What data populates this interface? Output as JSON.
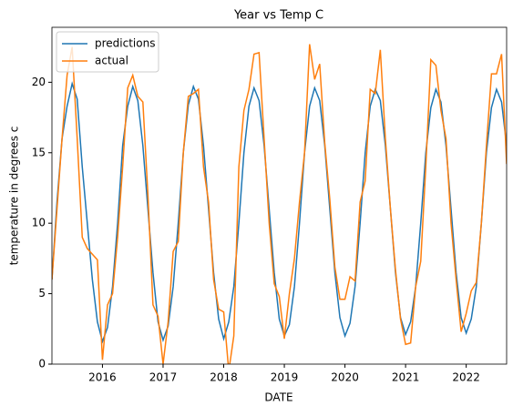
{
  "chart_data": {
    "type": "line",
    "title": "Year vs Temp C",
    "xlabel": "DATE",
    "ylabel": "temperature in degrees c",
    "x": [
      "2015-03",
      "2015-04",
      "2015-05",
      "2015-06",
      "2015-07",
      "2015-08",
      "2015-09",
      "2015-10",
      "2015-11",
      "2015-12",
      "2016-01",
      "2016-02",
      "2016-03",
      "2016-04",
      "2016-05",
      "2016-06",
      "2016-07",
      "2016-08",
      "2016-09",
      "2016-10",
      "2016-11",
      "2016-12",
      "2017-01",
      "2017-02",
      "2017-03",
      "2017-04",
      "2017-05",
      "2017-06",
      "2017-07",
      "2017-08",
      "2017-09",
      "2017-10",
      "2017-11",
      "2017-12",
      "2018-01",
      "2018-02",
      "2018-03",
      "2018-04",
      "2018-05",
      "2018-06",
      "2018-07",
      "2018-08",
      "2018-09",
      "2018-10",
      "2018-11",
      "2018-12",
      "2019-01",
      "2019-02",
      "2019-03",
      "2019-04",
      "2019-05",
      "2019-06",
      "2019-07",
      "2019-08",
      "2019-09",
      "2019-10",
      "2019-11",
      "2019-12",
      "2020-01",
      "2020-02",
      "2020-03",
      "2020-04",
      "2020-05",
      "2020-06",
      "2020-07",
      "2020-08",
      "2020-09",
      "2020-10",
      "2020-11",
      "2020-12",
      "2021-01",
      "2021-02",
      "2021-03",
      "2021-04",
      "2021-05",
      "2021-06",
      "2021-07",
      "2021-08",
      "2021-09",
      "2021-10",
      "2021-11",
      "2021-12",
      "2022-01",
      "2022-02",
      "2022-03",
      "2022-04",
      "2022-05",
      "2022-06",
      "2022-07",
      "2022-08",
      "2022-09"
    ],
    "series": [
      {
        "name": "predictions",
        "color": "#1f77b4",
        "values": [
          6,
          11.5,
          16,
          18.3,
          19.9,
          18.8,
          14,
          10,
          6,
          3,
          1.6,
          2.6,
          5.5,
          10,
          15.5,
          18.3,
          19.7,
          18.7,
          15.5,
          11,
          6.5,
          3,
          1.7,
          2.7,
          5.5,
          10,
          15,
          18.4,
          19.7,
          18.8,
          15.5,
          11,
          6.5,
          3.2,
          1.8,
          3,
          5.5,
          10,
          15,
          18.3,
          19.6,
          18.7,
          15.5,
          11,
          6.5,
          3.2,
          2,
          2.8,
          5.5,
          10,
          15,
          18.3,
          19.6,
          18.7,
          15.5,
          11,
          6.5,
          3.3,
          2,
          2.9,
          5.5,
          10,
          15,
          18.3,
          19.5,
          18.7,
          15.5,
          11,
          6.5,
          3.3,
          2.1,
          3,
          5.5,
          10,
          15,
          18.2,
          19.5,
          18.6,
          15.5,
          11,
          6.5,
          3.3,
          2.2,
          3.2,
          5.5,
          10,
          15,
          18.2,
          19.5,
          18.6,
          15.5
        ]
      },
      {
        "name": "actual",
        "color": "#ff7f0e",
        "values": [
          6,
          11,
          16,
          20.5,
          22.5,
          16,
          9,
          8.2,
          7.8,
          7.4,
          0.3,
          4.2,
          5,
          9,
          14,
          19.6,
          20.5,
          19,
          18.6,
          12,
          4.2,
          3.4,
          0,
          3,
          8,
          8.7,
          15,
          19,
          19.2,
          19.5,
          14,
          11.5,
          6,
          3.9,
          3.7,
          -0.5,
          2,
          14,
          18,
          19.5,
          22,
          22.1,
          16,
          10,
          5.7,
          4.8,
          1.8,
          5,
          7.5,
          11.5,
          15,
          22.7,
          20.2,
          21.3,
          15.7,
          11.7,
          6.9,
          4.6,
          4.6,
          6.2,
          5.9,
          11.5,
          13,
          19.5,
          19.2,
          22.3,
          16,
          11,
          6.7,
          3.2,
          1.4,
          1.5,
          5.5,
          7.3,
          14,
          21.6,
          21.2,
          18,
          16,
          10,
          6,
          2.3,
          3.6,
          5.2,
          5.8,
          10,
          15.5,
          20.6,
          20.6,
          22,
          14.2
        ]
      }
    ],
    "xlim": [
      "2015-03",
      "2022-09"
    ],
    "xticks": [
      {
        "value": "2016-01",
        "label": "2016"
      },
      {
        "value": "2017-01",
        "label": "2017"
      },
      {
        "value": "2018-01",
        "label": "2018"
      },
      {
        "value": "2019-01",
        "label": "2019"
      },
      {
        "value": "2020-01",
        "label": "2020"
      },
      {
        "value": "2021-01",
        "label": "2021"
      },
      {
        "value": "2022-01",
        "label": "2022"
      }
    ],
    "ylim": [
      0,
      23.9
    ],
    "yticks": [
      0,
      5,
      10,
      15,
      20
    ],
    "grid": false,
    "legend": "upper left"
  }
}
